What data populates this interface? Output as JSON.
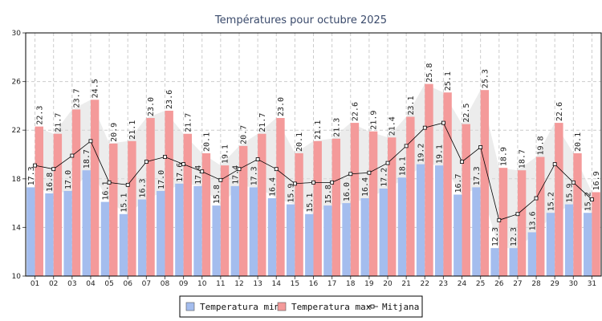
{
  "chart_data": {
    "type": "bar",
    "title": "Températures pour octubre 2025",
    "xlabel": "",
    "ylabel": "",
    "ylim": [
      10,
      30
    ],
    "yticks": [
      10,
      14,
      18,
      22,
      26,
      30
    ],
    "grid": true,
    "legend_position": "bottom",
    "categories": [
      "01",
      "02",
      "03",
      "04",
      "05",
      "06",
      "07",
      "08",
      "09",
      "10",
      "11",
      "12",
      "13",
      "14",
      "15",
      "16",
      "17",
      "18",
      "19",
      "20",
      "21",
      "22",
      "23",
      "24",
      "25",
      "26",
      "27",
      "28",
      "29",
      "30",
      "31"
    ],
    "series": [
      {
        "name": "Temperatura min",
        "kind": "bar",
        "color": "#a4bdee",
        "values": [
          17.3,
          16.8,
          17.0,
          18.7,
          16.1,
          15.1,
          16.3,
          17.0,
          17.6,
          17.4,
          15.8,
          17.4,
          17.3,
          16.4,
          15.9,
          15.1,
          15.8,
          16.0,
          16.4,
          17.2,
          18.1,
          19.2,
          19.1,
          16.7,
          17.3,
          12.3,
          12.3,
          13.6,
          15.2,
          15.9,
          15.2
        ],
        "labels": [
          "17.3",
          "16.8",
          "17.0",
          "18.7",
          "16.1",
          "15.1",
          "16.3",
          "17.0",
          "17.6",
          "17.4",
          "15.8",
          "17.4",
          "17.3",
          "16.4",
          "15.9",
          "15.1",
          "15.8",
          "16.0",
          "16.4",
          "17.2",
          "18.1",
          "19.2",
          "19.1",
          "16.7",
          "17.3",
          "12.3",
          "12.3",
          "13.6",
          "15.2",
          "15.9",
          "15.2"
        ]
      },
      {
        "name": "Temperatura max",
        "kind": "bar",
        "color": "#f49a9a",
        "values": [
          22.3,
          21.7,
          23.7,
          24.5,
          20.9,
          21.1,
          23.0,
          23.6,
          21.7,
          20.1,
          19.1,
          20.7,
          21.7,
          23.0,
          20.1,
          21.1,
          21.3,
          22.6,
          21.9,
          21.4,
          23.1,
          25.8,
          25.1,
          22.5,
          25.3,
          18.9,
          18.7,
          19.8,
          22.6,
          20.1,
          16.9
        ],
        "labels": [
          "22.3",
          "21.7",
          "23.7",
          "24.5",
          "20.9",
          "21.1",
          "23.0",
          "23.6",
          "21.7",
          "20.1",
          "19.1",
          "20.7",
          "21.7",
          "23.0",
          "20.1",
          "21.1",
          "21.3",
          "22.6",
          "21.9",
          "21.4",
          "23.1",
          "25.8",
          "25.1",
          "22.5",
          "25.3",
          "18.9",
          "18.7",
          "19.8",
          "22.6",
          "20.1",
          "16.9"
        ]
      },
      {
        "name": "Mitjana",
        "kind": "line",
        "color": "#000000",
        "values": [
          19.1,
          18.8,
          19.9,
          21.1,
          17.7,
          17.5,
          19.4,
          19.8,
          19.2,
          18.6,
          17.9,
          18.8,
          19.6,
          18.8,
          17.6,
          17.7,
          17.7,
          18.4,
          18.5,
          19.3,
          20.7,
          22.2,
          22.6,
          19.4,
          20.6,
          14.6,
          15.1,
          16.4,
          19.2,
          17.7,
          16.3
        ]
      }
    ],
    "colors": {
      "grid": "#cccccc",
      "axis": "#555555",
      "area": "#dddddd",
      "frame": "#000000"
    }
  }
}
